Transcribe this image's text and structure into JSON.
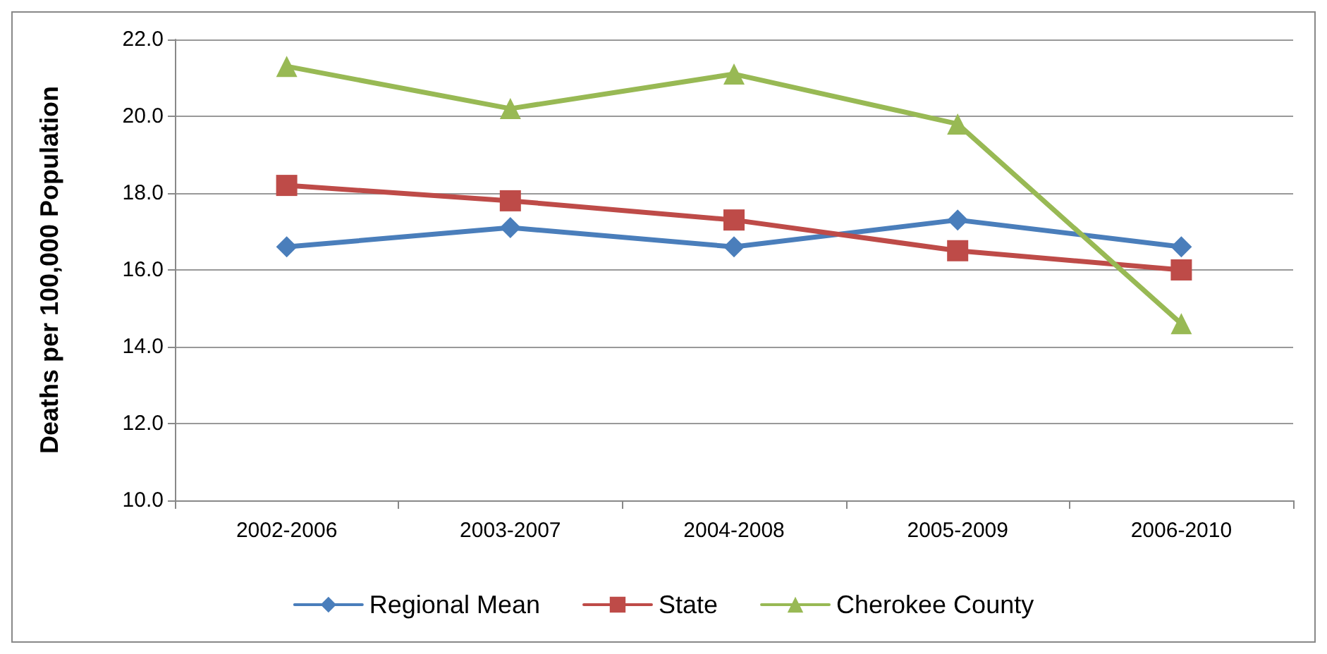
{
  "chart_data": {
    "type": "line",
    "ylabel": "Deaths per 100,000 Population",
    "categories": [
      "2002-2006",
      "2003-2007",
      "2004-2008",
      "2005-2009",
      "2006-2010"
    ],
    "series": [
      {
        "name": "Regional Mean",
        "color": "#4a7ebb",
        "marker": "diamond",
        "values": [
          16.6,
          17.1,
          16.6,
          17.3,
          16.6
        ]
      },
      {
        "name": "State",
        "color": "#be4b48",
        "marker": "square",
        "values": [
          18.2,
          17.8,
          17.3,
          16.5,
          16.0
        ]
      },
      {
        "name": "Cherokee County",
        "color": "#98b954",
        "marker": "triangle",
        "values": [
          21.3,
          20.2,
          21.1,
          19.8,
          14.6
        ]
      }
    ],
    "ylim": [
      10,
      22
    ],
    "yticks": [
      {
        "value": 10,
        "label": "10.0"
      },
      {
        "value": 12,
        "label": "12.0"
      },
      {
        "value": 14,
        "label": "14.0"
      },
      {
        "value": 16,
        "label": "16.0"
      },
      {
        "value": 18,
        "label": "18.0"
      },
      {
        "value": 20,
        "label": "20.0"
      },
      {
        "value": 22,
        "label": "22.0"
      }
    ],
    "grid": "y",
    "legend": "bottom"
  }
}
